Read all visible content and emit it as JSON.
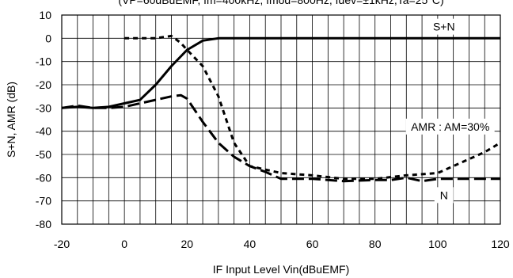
{
  "chart_data": {
    "type": "line",
    "title": "(VP=60dBuEMF, fm=400kHz, fmod=800Hz, fdev=±1kHz,Ta=25°C)",
    "xlabel": "IF Input Level Vin(dBuEMF)",
    "ylabel": "S+N, AMR (dB)",
    "xlim": [
      -20,
      120
    ],
    "ylim": [
      -80,
      10
    ],
    "x_ticks": [
      -20,
      0,
      20,
      40,
      60,
      80,
      100,
      120
    ],
    "y_ticks": [
      10,
      0,
      -10,
      -20,
      -30,
      -40,
      -50,
      -60,
      -70,
      -80
    ],
    "x_tick_labels": [
      "-20",
      "0",
      "20",
      "40",
      "60",
      "80",
      "100",
      "120"
    ],
    "y_tick_labels": [
      "10",
      "0",
      "-10",
      "-20",
      "-30",
      "-40",
      "-50",
      "-60",
      "-70",
      "-80"
    ],
    "x_minor_step": 5,
    "grid": true,
    "series": [
      {
        "name": "S+N",
        "style": "solid",
        "x": [
          -20,
          -15,
          -10,
          -5,
          0,
          5,
          10,
          15,
          20,
          25,
          30,
          40,
          60,
          80,
          100,
          120
        ],
        "y": [
          -30,
          -29.5,
          -30,
          -29.5,
          -28,
          -26.5,
          -20,
          -12,
          -5,
          -1,
          0,
          0,
          0,
          0,
          0,
          0
        ]
      },
      {
        "name": "N",
        "style": "longdash",
        "x": [
          -20,
          -15,
          -10,
          -5,
          0,
          5,
          10,
          15,
          18,
          20,
          25,
          30,
          35,
          40,
          45,
          50,
          60,
          70,
          80,
          85,
          90,
          95,
          100,
          110,
          120
        ],
        "y": [
          -30,
          -29,
          -30,
          -30,
          -29.5,
          -28,
          -26.5,
          -25,
          -24.5,
          -26,
          -36,
          -45,
          -51,
          -55,
          -57.5,
          -60.5,
          -60.5,
          -61.5,
          -61,
          -61,
          -60,
          -61.5,
          -60.5,
          -60.5,
          -60.5
        ]
      },
      {
        "name": "AMR : AM=30%",
        "style": "shortdash",
        "x": [
          0,
          5,
          10,
          15,
          18,
          20,
          25,
          30,
          35,
          40,
          50,
          60,
          70,
          80,
          90,
          100,
          105,
          110,
          115,
          120
        ],
        "y": [
          0,
          0,
          0,
          1,
          -2,
          -5,
          -12,
          -25,
          -45,
          -55,
          -58,
          -59,
          -60.5,
          -60.5,
          -59,
          -58,
          -55,
          -52,
          -49,
          -45
        ]
      }
    ],
    "annotations": [
      {
        "text": "S+N",
        "x": 102,
        "y": 5
      },
      {
        "text": "AMR : AM=30%",
        "x": 104,
        "y": -38
      },
      {
        "text": "N",
        "x": 102,
        "y": -67.5
      }
    ]
  }
}
